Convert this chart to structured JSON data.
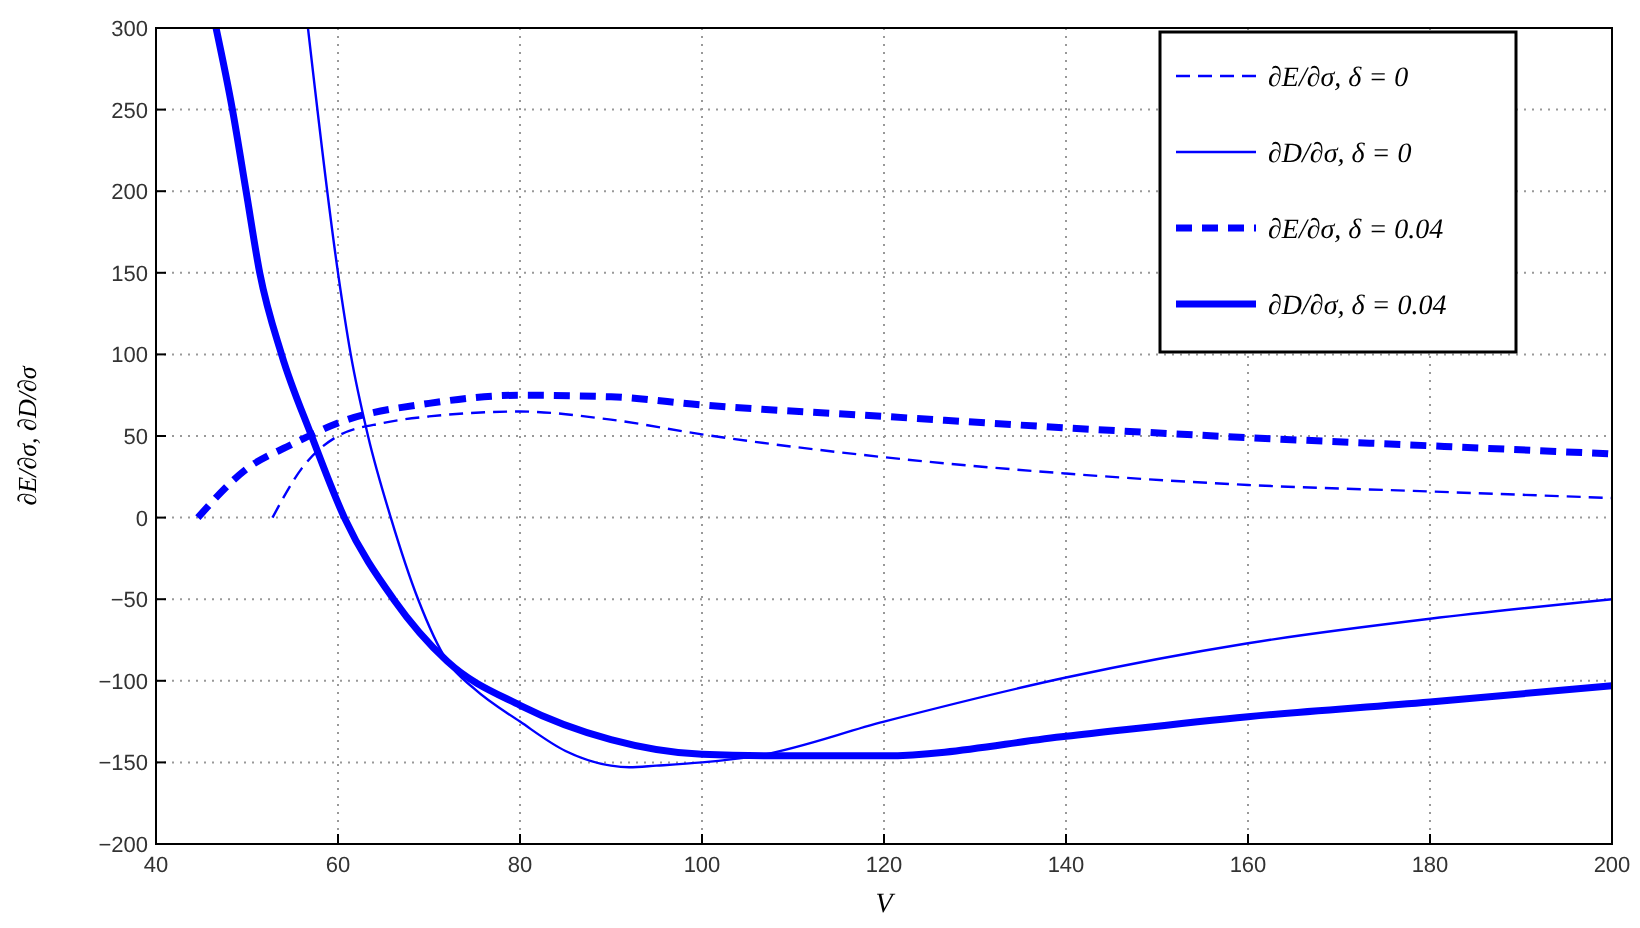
{
  "chart_data": {
    "type": "line",
    "xlabel": "V",
    "ylabel": "∂E/∂σ, ∂D/∂σ",
    "xlim": [
      40,
      200
    ],
    "ylim": [
      -200,
      300
    ],
    "xticks": [
      40,
      60,
      80,
      100,
      120,
      140,
      160,
      180,
      200
    ],
    "yticks": [
      -200,
      -150,
      -100,
      -50,
      0,
      50,
      100,
      150,
      200,
      250,
      300
    ],
    "grid": true,
    "legend": "top right",
    "series": [
      {
        "name": "∂E/∂σ, δ = 0",
        "color": "#0000ff",
        "line_style": "dashed",
        "x": [
          52.8,
          56,
          60,
          65,
          70,
          80,
          90,
          100,
          120,
          140,
          160,
          180,
          200
        ],
        "values": [
          0,
          30,
          50,
          58,
          62,
          65,
          60,
          51,
          37,
          27,
          20,
          16,
          12
        ]
      },
      {
        "name": "∂D/∂σ, δ = 0",
        "color": "#0000ff",
        "line_style": "solid",
        "x": [
          56.7,
          60,
          61.4,
          63.3,
          65.8,
          68.8,
          72,
          75,
          80,
          85,
          90,
          92,
          95,
          100,
          106,
          120,
          140,
          160,
          180,
          200
        ],
        "values": [
          300,
          150,
          100,
          50,
          0,
          -50,
          -88,
          -105,
          -125,
          -143,
          -152,
          -153,
          -152,
          -150,
          -146,
          -125,
          -98,
          -77,
          -62,
          -50
        ]
      },
      {
        "name": "∂E/∂σ, δ = 0.04",
        "color": "#0000ff",
        "line_style": "dashed",
        "x": [
          44.6,
          50,
          55,
          60,
          70,
          80,
          90,
          100,
          120,
          140,
          160,
          180,
          200
        ],
        "values": [
          0,
          30,
          45,
          58,
          70,
          75,
          74,
          69,
          62,
          55,
          49,
          44,
          39
        ]
      },
      {
        "name": "∂D/∂σ, δ = 0.04",
        "color": "#0000ff",
        "line_style": "solid",
        "x": [
          46.6,
          48.4,
          49.9,
          51.4,
          53.8,
          57.1,
          60.7,
          66.1,
          72,
          80,
          90,
          100,
          110,
          120,
          140,
          160,
          180,
          200
        ],
        "values": [
          300,
          250,
          200,
          150,
          100,
          50,
          0,
          -50,
          -88,
          -115,
          -136,
          -145,
          -146,
          -146,
          -134,
          -122,
          -113,
          -103
        ]
      }
    ]
  }
}
